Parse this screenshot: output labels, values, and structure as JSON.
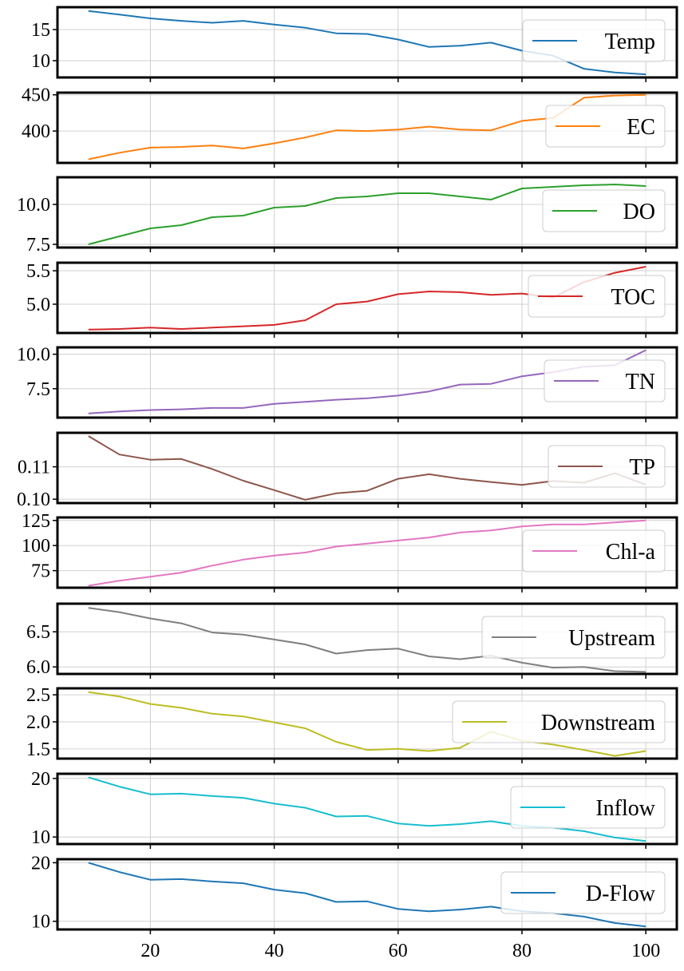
{
  "chart_data": [
    {
      "type": "line",
      "series": [
        {
          "name": "Temp",
          "color": "#1f77b4",
          "x": [
            10,
            15,
            20,
            25,
            30,
            35,
            40,
            45,
            50,
            55,
            60,
            65,
            70,
            75,
            80,
            85,
            90,
            95,
            100
          ],
          "values": [
            18.0,
            17.4,
            16.8,
            16.4,
            16.1,
            16.4,
            15.8,
            15.3,
            14.4,
            14.3,
            13.4,
            12.2,
            12.4,
            12.9,
            11.6,
            10.8,
            8.7,
            8.1,
            7.8
          ]
        }
      ],
      "xlim": [
        5,
        105
      ],
      "ylim": [
        7.3,
        18.6
      ],
      "yticks": [
        10,
        15
      ],
      "ytick_labels": [
        "10",
        "15"
      ],
      "grid": true,
      "legend": "right"
    },
    {
      "type": "line",
      "series": [
        {
          "name": "EC",
          "color": "#ff7f0e",
          "x": [
            10,
            15,
            20,
            25,
            30,
            35,
            40,
            45,
            50,
            55,
            60,
            65,
            70,
            75,
            80,
            85,
            90,
            95,
            100
          ],
          "values": [
            361,
            370,
            377,
            378,
            380,
            376,
            383,
            391,
            401,
            400,
            402,
            406,
            402,
            401,
            414,
            418,
            446,
            449,
            450
          ]
        }
      ],
      "xlim": [
        5,
        105
      ],
      "ylim": [
        356,
        453
      ],
      "yticks": [
        400,
        450
      ],
      "ytick_labels": [
        "400",
        "450"
      ],
      "grid": true,
      "legend": "right"
    },
    {
      "type": "line",
      "series": [
        {
          "name": "DO",
          "color": "#2ca02c",
          "x": [
            10,
            15,
            20,
            25,
            30,
            35,
            40,
            45,
            50,
            55,
            60,
            65,
            70,
            75,
            80,
            85,
            90,
            95,
            100
          ],
          "values": [
            7.5,
            8.0,
            8.5,
            8.7,
            9.2,
            9.3,
            9.8,
            9.9,
            10.4,
            10.5,
            10.7,
            10.7,
            10.5,
            10.3,
            11.0,
            11.1,
            11.2,
            11.25,
            11.15
          ]
        }
      ],
      "xlim": [
        5,
        105
      ],
      "ylim": [
        7.3,
        11.7
      ],
      "yticks": [
        7.5,
        10.0
      ],
      "ytick_labels": [
        "7.5",
        "10.0"
      ],
      "grid": true,
      "legend": "right"
    },
    {
      "type": "line",
      "series": [
        {
          "name": "TOC",
          "color": "#d62728",
          "x": [
            10,
            15,
            20,
            25,
            30,
            35,
            40,
            45,
            50,
            55,
            60,
            65,
            70,
            75,
            80,
            85,
            90,
            95,
            100
          ],
          "values": [
            4.62,
            4.63,
            4.65,
            4.63,
            4.65,
            4.67,
            4.69,
            4.76,
            5.0,
            5.04,
            5.15,
            5.19,
            5.18,
            5.14,
            5.16,
            5.1,
            5.33,
            5.47,
            5.56
          ]
        }
      ],
      "xlim": [
        5,
        105
      ],
      "ylim": [
        4.57,
        5.62
      ],
      "yticks": [
        5.0,
        5.5
      ],
      "ytick_labels": [
        "5.0",
        "5.5"
      ],
      "grid": true,
      "legend": "right"
    },
    {
      "type": "line",
      "series": [
        {
          "name": "TN",
          "color": "#9467bd",
          "x": [
            10,
            15,
            20,
            25,
            30,
            35,
            40,
            45,
            50,
            55,
            60,
            65,
            70,
            75,
            80,
            85,
            90,
            95,
            100
          ],
          "values": [
            5.7,
            5.85,
            5.95,
            6.0,
            6.1,
            6.1,
            6.4,
            6.55,
            6.7,
            6.8,
            7.0,
            7.3,
            7.8,
            7.85,
            8.4,
            8.7,
            9.1,
            9.2,
            10.3
          ]
        }
      ],
      "xlim": [
        5,
        105
      ],
      "ylim": [
        5.4,
        10.5
      ],
      "yticks": [
        7.5,
        10.0
      ],
      "ytick_labels": [
        "7.5",
        "10.0"
      ],
      "grid": true,
      "legend": "right"
    },
    {
      "type": "line",
      "series": [
        {
          "name": "TP",
          "color": "#8c564b",
          "x": [
            10,
            15,
            20,
            25,
            30,
            35,
            40,
            45,
            50,
            55,
            60,
            65,
            70,
            75,
            80,
            85,
            90,
            95,
            100
          ],
          "values": [
            0.1195,
            0.1138,
            0.1122,
            0.1124,
            0.1093,
            0.1057,
            0.1028,
            0.0998,
            0.1018,
            0.1026,
            0.1063,
            0.1077,
            0.1063,
            0.1053,
            0.1044,
            0.1056,
            0.1051,
            0.108,
            0.1045
          ]
        }
      ],
      "xlim": [
        5,
        105
      ],
      "ylim": [
        0.0988,
        0.1205
      ],
      "yticks": [
        0.1,
        0.11
      ],
      "ytick_labels": [
        "0.10",
        "0.11"
      ],
      "grid": true,
      "legend": "right"
    },
    {
      "type": "line",
      "series": [
        {
          "name": "Chl-a",
          "color": "#e377c2",
          "x": [
            10,
            15,
            20,
            25,
            30,
            35,
            40,
            45,
            50,
            55,
            60,
            65,
            70,
            75,
            80,
            85,
            90,
            95,
            100
          ],
          "values": [
            60,
            65,
            69,
            73,
            80,
            86,
            90,
            93,
            99,
            102,
            105,
            108,
            113,
            115,
            119,
            121,
            121,
            123,
            125
          ]
        }
      ],
      "xlim": [
        5,
        105
      ],
      "ylim": [
        58,
        128
      ],
      "yticks": [
        75,
        100,
        125
      ],
      "ytick_labels": [
        "75",
        "100",
        "125"
      ],
      "grid": true,
      "legend": "right"
    },
    {
      "type": "line",
      "series": [
        {
          "name": "Upstream",
          "color": "#7f7f7f",
          "x": [
            10,
            15,
            20,
            25,
            30,
            35,
            40,
            45,
            50,
            55,
            60,
            65,
            70,
            75,
            80,
            85,
            90,
            95,
            100
          ],
          "values": [
            6.84,
            6.78,
            6.69,
            6.62,
            6.49,
            6.46,
            6.39,
            6.32,
            6.19,
            6.24,
            6.26,
            6.15,
            6.11,
            6.16,
            6.06,
            5.99,
            6.0,
            5.94,
            5.93
          ]
        }
      ],
      "xlim": [
        5,
        105
      ],
      "ylim": [
        5.9,
        6.9
      ],
      "yticks": [
        6.0,
        6.5
      ],
      "ytick_labels": [
        "6.0",
        "6.5"
      ],
      "grid": true,
      "legend": "right"
    },
    {
      "type": "line",
      "series": [
        {
          "name": "Downstream",
          "color": "#bcbd22",
          "x": [
            10,
            15,
            20,
            25,
            30,
            35,
            40,
            45,
            50,
            55,
            60,
            65,
            70,
            75,
            80,
            85,
            90,
            95,
            100
          ],
          "values": [
            2.55,
            2.47,
            2.33,
            2.26,
            2.15,
            2.1,
            1.99,
            1.88,
            1.63,
            1.48,
            1.5,
            1.46,
            1.52,
            1.82,
            1.65,
            1.58,
            1.48,
            1.37,
            1.46
          ]
        }
      ],
      "xlim": [
        5,
        105
      ],
      "ylim": [
        1.32,
        2.62
      ],
      "yticks": [
        1.5,
        2.0,
        2.5
      ],
      "ytick_labels": [
        "1.5",
        "2.0",
        "2.5"
      ],
      "grid": true,
      "legend": "right"
    },
    {
      "type": "line",
      "series": [
        {
          "name": "Inflow",
          "color": "#17becf",
          "x": [
            10,
            15,
            20,
            25,
            30,
            35,
            40,
            45,
            50,
            55,
            60,
            65,
            70,
            75,
            80,
            85,
            90,
            95,
            100
          ],
          "values": [
            20.2,
            18.6,
            17.3,
            17.4,
            17.0,
            16.7,
            15.7,
            15.0,
            13.5,
            13.6,
            12.3,
            11.9,
            12.2,
            12.7,
            11.9,
            11.6,
            11.0,
            9.9,
            9.3
          ]
        }
      ],
      "xlim": [
        5,
        105
      ],
      "ylim": [
        8.8,
        20.8
      ],
      "yticks": [
        10,
        20
      ],
      "ytick_labels": [
        "10",
        "20"
      ],
      "grid": true,
      "legend": "right"
    },
    {
      "type": "line",
      "series": [
        {
          "name": "D-Flow",
          "color": "#1f77b4",
          "x": [
            10,
            15,
            20,
            25,
            30,
            35,
            40,
            45,
            50,
            55,
            60,
            65,
            70,
            75,
            80,
            85,
            90,
            95,
            100
          ],
          "values": [
            20.0,
            18.4,
            17.1,
            17.2,
            16.8,
            16.5,
            15.4,
            14.8,
            13.3,
            13.4,
            12.1,
            11.7,
            12.0,
            12.5,
            11.7,
            11.4,
            10.8,
            9.7,
            9.1
          ]
        }
      ],
      "xlim": [
        5,
        105
      ],
      "ylim": [
        8.6,
        20.6
      ],
      "yticks": [
        10,
        20
      ],
      "ytick_labels": [
        "10",
        "20"
      ],
      "grid": true,
      "legend": "right",
      "xticks": [
        20,
        40,
        60,
        80,
        100
      ],
      "xtick_labels": [
        "20",
        "40",
        "60",
        "80",
        "100"
      ]
    }
  ]
}
